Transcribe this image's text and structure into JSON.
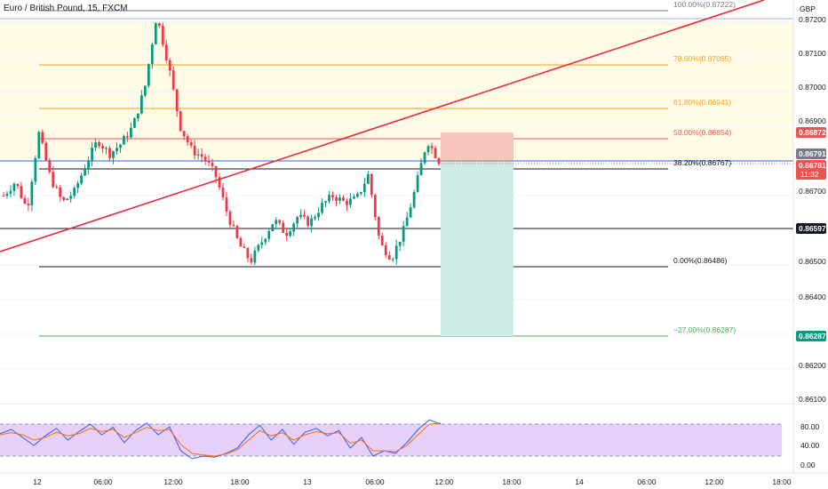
{
  "header": {
    "title": "Euro / British Pound, 15, FXCM"
  },
  "axis": {
    "currency": "GBP",
    "price_ticks": [
      "0.87200",
      "0.87100",
      "0.87000",
      "0.86900",
      "0.86700",
      "0.86500",
      "0.86400",
      "0.86200",
      "0.86100"
    ],
    "time_ticks": [
      "12",
      "06:00",
      "12:00",
      "18:00",
      "13",
      "06:00",
      "12:00",
      "18:00",
      "14",
      "06:00",
      "12:00",
      "18:00"
    ],
    "rsi_ticks": [
      "80.00",
      "40.00",
      "0.00"
    ]
  },
  "badges": {
    "b1": {
      "value": "0.86872",
      "color": "#ef5350"
    },
    "b2": {
      "value": "0.86791",
      "color": "#787b86"
    },
    "b3": {
      "value": "0.86781",
      "color": "#ef5350",
      "sub": "11:32"
    },
    "b4": {
      "value": "0.86597",
      "color": "#131722"
    },
    "b5": {
      "value": "0.86287",
      "color": "#089981"
    }
  },
  "fib_labels": {
    "l100": "100.00%(0.87222)",
    "l786": "78.60%(0.87065)",
    "l618": "61.80%(0.86941)",
    "l50": "50.00%(0.86854)",
    "l382": "38.20%(0.86767)",
    "l0": "0.00%(0.86486)",
    "lm27": "−27.00%(0.86287)"
  },
  "colors": {
    "fib_fill": "#fffbe6",
    "trendline": "#e8283a",
    "up": "#089981",
    "down": "#f23645",
    "rsi_band": "#e4ccfa",
    "short_stop": "#f9c6bd",
    "short_target": "#cdebe6"
  },
  "chart_data": {
    "type": "candlestick",
    "symbol": "Euro / British Pound",
    "interval": "15",
    "source": "FXCM",
    "yaxis_currency": "GBP",
    "y_range": [
      0.8604,
      0.8728
    ],
    "fibonacci": [
      {
        "level": 100.0,
        "price": 0.87222
      },
      {
        "level": 78.6,
        "price": 0.87065
      },
      {
        "level": 61.8,
        "price": 0.86941
      },
      {
        "level": 50.0,
        "price": 0.86854
      },
      {
        "level": 38.2,
        "price": 0.86767
      },
      {
        "level": 0.0,
        "price": 0.86486
      },
      {
        "level": -27.0,
        "price": 0.86287
      }
    ],
    "price_markers": [
      0.86872,
      0.86791,
      0.86781,
      0.86597,
      0.86287
    ],
    "approx_path": [
      0.867,
      0.8674,
      0.8666,
      0.8688,
      0.8675,
      0.8668,
      0.8671,
      0.8679,
      0.8686,
      0.8682,
      0.8685,
      0.869,
      0.8701,
      0.8722,
      0.8708,
      0.869,
      0.8683,
      0.8681,
      0.8676,
      0.8665,
      0.8656,
      0.8651,
      0.8657,
      0.8663,
      0.8659,
      0.8664,
      0.8662,
      0.8667,
      0.867,
      0.8668,
      0.8669,
      0.8676,
      0.8656,
      0.8652,
      0.866,
      0.8672,
      0.8686,
      0.868
    ],
    "rsi": {
      "levels": [
        80,
        20
      ],
      "axis_ticks": [
        80,
        40,
        0
      ],
      "approx_k": [
        62,
        70,
        55,
        40,
        58,
        72,
        50,
        66,
        80,
        60,
        74,
        45,
        68,
        82,
        60,
        75,
        30,
        15,
        20,
        18,
        25,
        35,
        60,
        78,
        50,
        70,
        42,
        65,
        72,
        58,
        68,
        35,
        55,
        20,
        30,
        25,
        45,
        70,
        88,
        80
      ],
      "approx_d": [
        60,
        64,
        60,
        50,
        55,
        65,
        58,
        62,
        72,
        66,
        70,
        55,
        64,
        74,
        68,
        70,
        42,
        25,
        22,
        20,
        24,
        32,
        50,
        68,
        58,
        64,
        50,
        60,
        66,
        62,
        64,
        44,
        50,
        30,
        30,
        28,
        40,
        60,
        80,
        82
      ]
    }
  }
}
